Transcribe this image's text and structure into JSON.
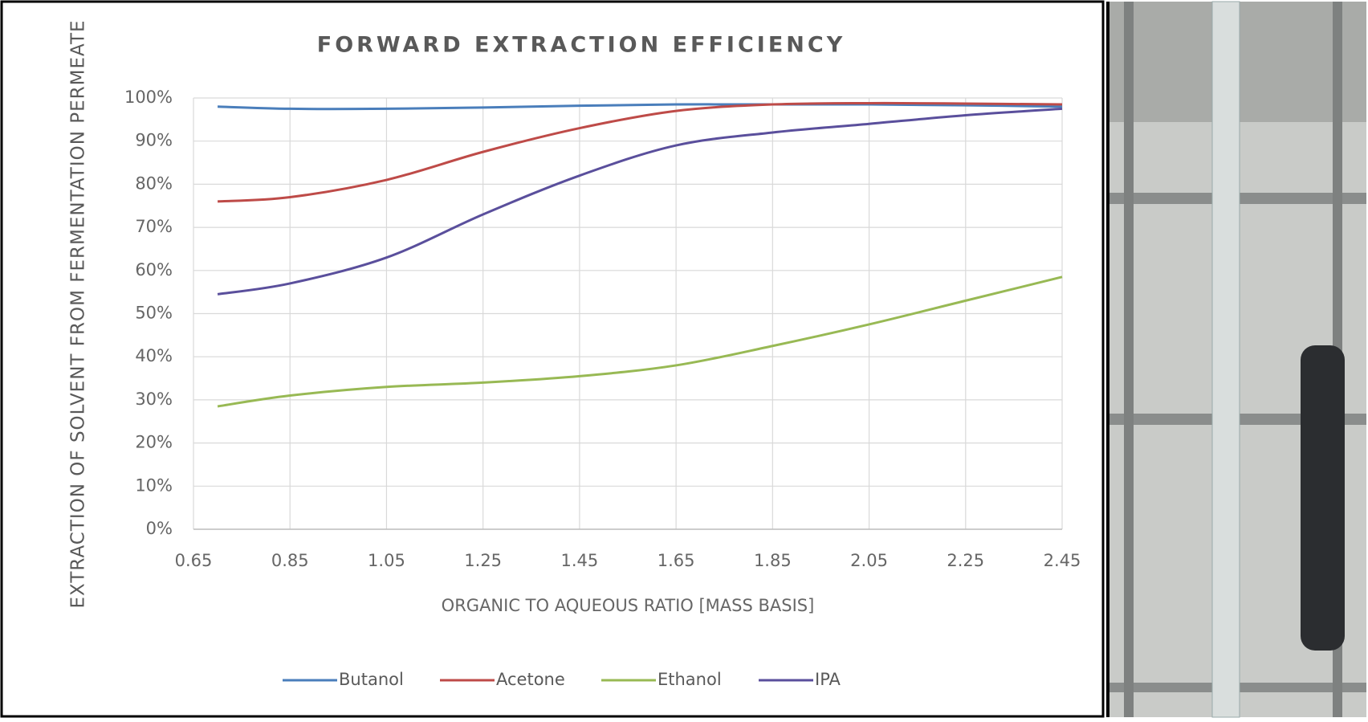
{
  "chart_data": {
    "type": "line",
    "title": "FORWARD EXTRACTION EFFICIENCY",
    "x_label": "ORGANIC TO AQUEOUS RATIO [MASS BASIS]",
    "y_label": "EXTRACTION OF SOLVENT FROM FERMENTATION PERMEATE",
    "x": [
      0.7,
      0.85,
      1.05,
      1.25,
      1.45,
      1.65,
      1.85,
      2.05,
      2.25,
      2.45
    ],
    "series": [
      {
        "name": "Butanol",
        "color": "#4a7ebb",
        "values": [
          98,
          97.5,
          97.5,
          97.8,
          98.2,
          98.5,
          98.5,
          98.5,
          98.3,
          98
        ]
      },
      {
        "name": "Acetone",
        "color": "#be4b48",
        "values": [
          76,
          77,
          81,
          87.5,
          93,
          97,
          98.5,
          98.8,
          98.7,
          98.5
        ]
      },
      {
        "name": "Ethanol",
        "color": "#98b954",
        "values": [
          28.5,
          31,
          33,
          34,
          35.5,
          38,
          42.5,
          47.5,
          53,
          58.5
        ]
      },
      {
        "name": "IPA",
        "color": "#5a4f9c",
        "values": [
          54.5,
          57,
          63,
          73,
          82,
          89,
          92,
          94,
          96,
          97.5
        ]
      }
    ],
    "xlim": [
      0.65,
      2.45
    ],
    "xticks": [
      0.65,
      0.85,
      1.05,
      1.25,
      1.45,
      1.65,
      1.85,
      2.05,
      2.25,
      2.45
    ],
    "ylim": [
      0,
      100
    ],
    "yticks": [
      {
        "value": 0,
        "label": "0%"
      },
      {
        "value": 10,
        "label": "10%"
      },
      {
        "value": 20,
        "label": "20%"
      },
      {
        "value": 30,
        "label": "30%"
      },
      {
        "value": 40,
        "label": "40%"
      },
      {
        "value": 50,
        "label": "50%"
      },
      {
        "value": 60,
        "label": "60%"
      },
      {
        "value": 70,
        "label": "70%"
      },
      {
        "value": 80,
        "label": "80%"
      },
      {
        "value": 90,
        "label": "90%"
      },
      {
        "value": 100,
        "label": "100%"
      }
    ],
    "grid": true,
    "legend": "bottom"
  }
}
